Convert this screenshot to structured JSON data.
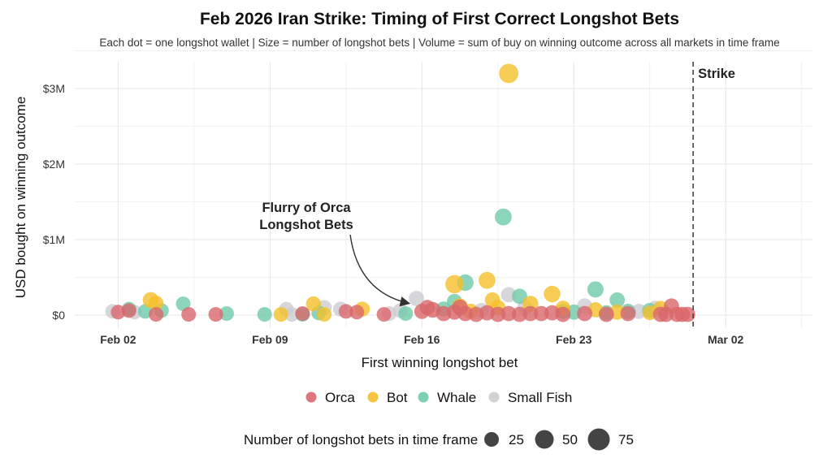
{
  "chart_data": {
    "type": "scatter",
    "title": "Feb 2026 Iran Strike: Timing of First Correct Longshot Bets",
    "subtitle": "Each dot = one longshot wallet  |  Size = number of longshot bets  |  Volume = sum of buy on winning outcome across all markets in time frame",
    "xlabel": "First winning longshot bet",
    "ylabel": "USD bought on winning outcome",
    "x_ticks": [
      "Feb 02",
      "Feb 09",
      "Feb 16",
      "Feb 23",
      "Mar 02"
    ],
    "y_ticks": [
      "$0",
      "$1M",
      "$2M",
      "$3M"
    ],
    "xlim": [
      "2026-01-31",
      "2026-03-06"
    ],
    "ylim": [
      0,
      3300000
    ],
    "grid": true,
    "vline": {
      "x": "2026-02-28 12:00",
      "label": "Strike"
    },
    "annotation": {
      "lines": [
        "Flurry of Orca",
        "Longshot Bets"
      ],
      "x": "2026-02-15 12:00",
      "y": 90000
    },
    "categories": [
      "Orca",
      "Bot",
      "Whale",
      "Small Fish"
    ],
    "colors": {
      "Orca": "#d9666b",
      "Bot": "#f5bf2a",
      "Whale": "#6fcaaa",
      "Small Fish": "#cdcdd2"
    },
    "size_legend": {
      "title": "Number of longshot bets in time frame",
      "values": [
        25,
        50,
        75
      ]
    },
    "legend_position": "bottom",
    "series": [
      {
        "name": "Orca",
        "points": [
          {
            "x": "2026-02-02 00:00",
            "y": 40000,
            "n": 8
          },
          {
            "x": "2026-02-02 12:00",
            "y": 60000,
            "n": 8
          },
          {
            "x": "2026-02-03 18:00",
            "y": 10000,
            "n": 8
          },
          {
            "x": "2026-02-05 06:00",
            "y": 10000,
            "n": 8
          },
          {
            "x": "2026-02-06 12:00",
            "y": 10000,
            "n": 8
          },
          {
            "x": "2026-02-10 12:00",
            "y": 20000,
            "n": 8
          },
          {
            "x": "2026-02-12 12:00",
            "y": 50000,
            "n": 8
          },
          {
            "x": "2026-02-13 00:00",
            "y": 40000,
            "n": 8
          },
          {
            "x": "2026-02-14 06:00",
            "y": 10000,
            "n": 8
          },
          {
            "x": "2026-02-16 00:00",
            "y": 50000,
            "n": 10
          },
          {
            "x": "2026-02-16 06:00",
            "y": 100000,
            "n": 10
          },
          {
            "x": "2026-02-16 12:00",
            "y": 70000,
            "n": 12
          },
          {
            "x": "2026-02-17 00:00",
            "y": 20000,
            "n": 10
          },
          {
            "x": "2026-02-17 12:00",
            "y": 40000,
            "n": 10
          },
          {
            "x": "2026-02-17 18:00",
            "y": 100000,
            "n": 12
          },
          {
            "x": "2026-02-18 00:00",
            "y": 20000,
            "n": 10
          },
          {
            "x": "2026-02-18 12:00",
            "y": 10000,
            "n": 10
          },
          {
            "x": "2026-02-19 00:00",
            "y": 30000,
            "n": 10
          },
          {
            "x": "2026-02-19 12:00",
            "y": 10000,
            "n": 10
          },
          {
            "x": "2026-02-20 00:00",
            "y": 20000,
            "n": 10
          },
          {
            "x": "2026-02-20 12:00",
            "y": 10000,
            "n": 10
          },
          {
            "x": "2026-02-21 00:00",
            "y": 20000,
            "n": 10
          },
          {
            "x": "2026-02-21 12:00",
            "y": 20000,
            "n": 10
          },
          {
            "x": "2026-02-22 00:00",
            "y": 30000,
            "n": 10
          },
          {
            "x": "2026-02-22 12:00",
            "y": 10000,
            "n": 10
          },
          {
            "x": "2026-02-23 12:00",
            "y": 20000,
            "n": 10
          },
          {
            "x": "2026-02-24 12:00",
            "y": 10000,
            "n": 10
          },
          {
            "x": "2026-02-25 12:00",
            "y": 20000,
            "n": 10
          },
          {
            "x": "2026-02-27 00:00",
            "y": 10000,
            "n": 10
          },
          {
            "x": "2026-02-27 06:00",
            "y": 10000,
            "n": 10
          },
          {
            "x": "2026-02-27 12:00",
            "y": 120000,
            "n": 10
          },
          {
            "x": "2026-02-27 18:00",
            "y": 10000,
            "n": 10
          },
          {
            "x": "2026-02-28 00:00",
            "y": 10000,
            "n": 10
          },
          {
            "x": "2026-02-28 06:00",
            "y": 10000,
            "n": 10
          }
        ]
      },
      {
        "name": "Bot",
        "points": [
          {
            "x": "2026-02-03 12:00",
            "y": 200000,
            "n": 12
          },
          {
            "x": "2026-02-03 18:00",
            "y": 160000,
            "n": 8
          },
          {
            "x": "2026-02-09 12:00",
            "y": 10000,
            "n": 8
          },
          {
            "x": "2026-02-11 00:00",
            "y": 150000,
            "n": 9
          },
          {
            "x": "2026-02-11 12:00",
            "y": 10000,
            "n": 8
          },
          {
            "x": "2026-02-13 06:00",
            "y": 80000,
            "n": 9
          },
          {
            "x": "2026-02-17 12:00",
            "y": 410000,
            "n": 20
          },
          {
            "x": "2026-02-17 18:00",
            "y": 120000,
            "n": 10
          },
          {
            "x": "2026-02-18 06:00",
            "y": 50000,
            "n": 10
          },
          {
            "x": "2026-02-19 00:00",
            "y": 460000,
            "n": 15
          },
          {
            "x": "2026-02-19 06:00",
            "y": 200000,
            "n": 10
          },
          {
            "x": "2026-02-19 12:00",
            "y": 100000,
            "n": 10
          },
          {
            "x": "2026-02-20 00:00",
            "y": 3200000,
            "n": 24
          },
          {
            "x": "2026-02-21 00:00",
            "y": 150000,
            "n": 12
          },
          {
            "x": "2026-02-22 00:00",
            "y": 280000,
            "n": 14
          },
          {
            "x": "2026-02-22 12:00",
            "y": 90000,
            "n": 10
          },
          {
            "x": "2026-02-24 00:00",
            "y": 70000,
            "n": 10
          },
          {
            "x": "2026-02-25 00:00",
            "y": 40000,
            "n": 10
          },
          {
            "x": "2026-02-26 12:00",
            "y": 30000,
            "n": 8
          },
          {
            "x": "2026-02-27 00:00",
            "y": 90000,
            "n": 9
          }
        ]
      },
      {
        "name": "Whale",
        "points": [
          {
            "x": "2026-02-02 12:00",
            "y": 80000,
            "n": 8
          },
          {
            "x": "2026-02-03 06:00",
            "y": 50000,
            "n": 8
          },
          {
            "x": "2026-02-04 00:00",
            "y": 60000,
            "n": 8
          },
          {
            "x": "2026-02-05 00:00",
            "y": 150000,
            "n": 8
          },
          {
            "x": "2026-02-07 00:00",
            "y": 20000,
            "n": 8
          },
          {
            "x": "2026-02-08 18:00",
            "y": 10000,
            "n": 8
          },
          {
            "x": "2026-02-10 12:00",
            "y": 10000,
            "n": 8
          },
          {
            "x": "2026-02-11 06:00",
            "y": 30000,
            "n": 8
          },
          {
            "x": "2026-02-15 06:00",
            "y": 20000,
            "n": 8
          },
          {
            "x": "2026-02-17 00:00",
            "y": 80000,
            "n": 10
          },
          {
            "x": "2026-02-17 12:00",
            "y": 180000,
            "n": 10
          },
          {
            "x": "2026-02-18 00:00",
            "y": 430000,
            "n": 14
          },
          {
            "x": "2026-02-19 18:00",
            "y": 1300000,
            "n": 15
          },
          {
            "x": "2026-02-20 12:00",
            "y": 250000,
            "n": 10
          },
          {
            "x": "2026-02-22 12:00",
            "y": 50000,
            "n": 10
          },
          {
            "x": "2026-02-23 00:00",
            "y": 40000,
            "n": 10
          },
          {
            "x": "2026-02-24 00:00",
            "y": 340000,
            "n": 13
          },
          {
            "x": "2026-02-24 12:00",
            "y": 30000,
            "n": 10
          },
          {
            "x": "2026-02-25 00:00",
            "y": 200000,
            "n": 10
          },
          {
            "x": "2026-02-25 12:00",
            "y": 50000,
            "n": 10
          },
          {
            "x": "2026-02-26 12:00",
            "y": 60000,
            "n": 10
          }
        ]
      },
      {
        "name": "Small Fish",
        "points": [
          {
            "x": "2026-02-01 18:00",
            "y": 50000,
            "n": 8
          },
          {
            "x": "2026-02-02 18:00",
            "y": 40000,
            "n": 8
          },
          {
            "x": "2026-02-09 18:00",
            "y": 80000,
            "n": 8
          },
          {
            "x": "2026-02-10 00:00",
            "y": 10000,
            "n": 8
          },
          {
            "x": "2026-02-11 12:00",
            "y": 100000,
            "n": 9
          },
          {
            "x": "2026-02-12 06:00",
            "y": 80000,
            "n": 9
          },
          {
            "x": "2026-02-14 12:00",
            "y": 20000,
            "n": 8
          },
          {
            "x": "2026-02-15 00:00",
            "y": 60000,
            "n": 8
          },
          {
            "x": "2026-02-15 18:00",
            "y": 220000,
            "n": 10
          },
          {
            "x": "2026-02-18 18:00",
            "y": 60000,
            "n": 10
          },
          {
            "x": "2026-02-20 00:00",
            "y": 270000,
            "n": 10
          },
          {
            "x": "2026-02-20 18:00",
            "y": 100000,
            "n": 10
          },
          {
            "x": "2026-02-23 12:00",
            "y": 120000,
            "n": 10
          },
          {
            "x": "2026-02-26 00:00",
            "y": 50000,
            "n": 10
          },
          {
            "x": "2026-02-26 18:00",
            "y": 90000,
            "n": 10
          }
        ]
      }
    ]
  }
}
